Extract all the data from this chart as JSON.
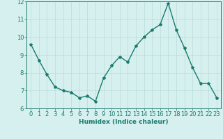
{
  "x": [
    0,
    1,
    2,
    3,
    4,
    5,
    6,
    7,
    8,
    9,
    10,
    11,
    12,
    13,
    14,
    15,
    16,
    17,
    18,
    19,
    20,
    21,
    22,
    23
  ],
  "y": [
    9.6,
    8.7,
    7.9,
    7.2,
    7.0,
    6.9,
    6.6,
    6.7,
    6.4,
    7.7,
    8.4,
    8.9,
    8.6,
    9.5,
    10.0,
    10.4,
    10.7,
    11.9,
    10.4,
    9.4,
    8.3,
    7.4,
    7.4,
    6.6
  ],
  "line_color": "#1a7a6e",
  "marker": "*",
  "marker_size": 3,
  "bg_color": "#d6f0ef",
  "grid_color": "#b8dbd9",
  "axis_color": "#1a7a6e",
  "xlabel": "Humidex (Indice chaleur)",
  "ylim": [
    6,
    12
  ],
  "xlim_min": -0.5,
  "xlim_max": 23.5,
  "yticks": [
    6,
    7,
    8,
    9,
    10,
    11,
    12
  ],
  "xticks": [
    0,
    1,
    2,
    3,
    4,
    5,
    6,
    7,
    8,
    9,
    10,
    11,
    12,
    13,
    14,
    15,
    16,
    17,
    18,
    19,
    20,
    21,
    22,
    23
  ],
  "xlabel_fontsize": 6.5,
  "tick_fontsize": 6,
  "linewidth": 1.0
}
